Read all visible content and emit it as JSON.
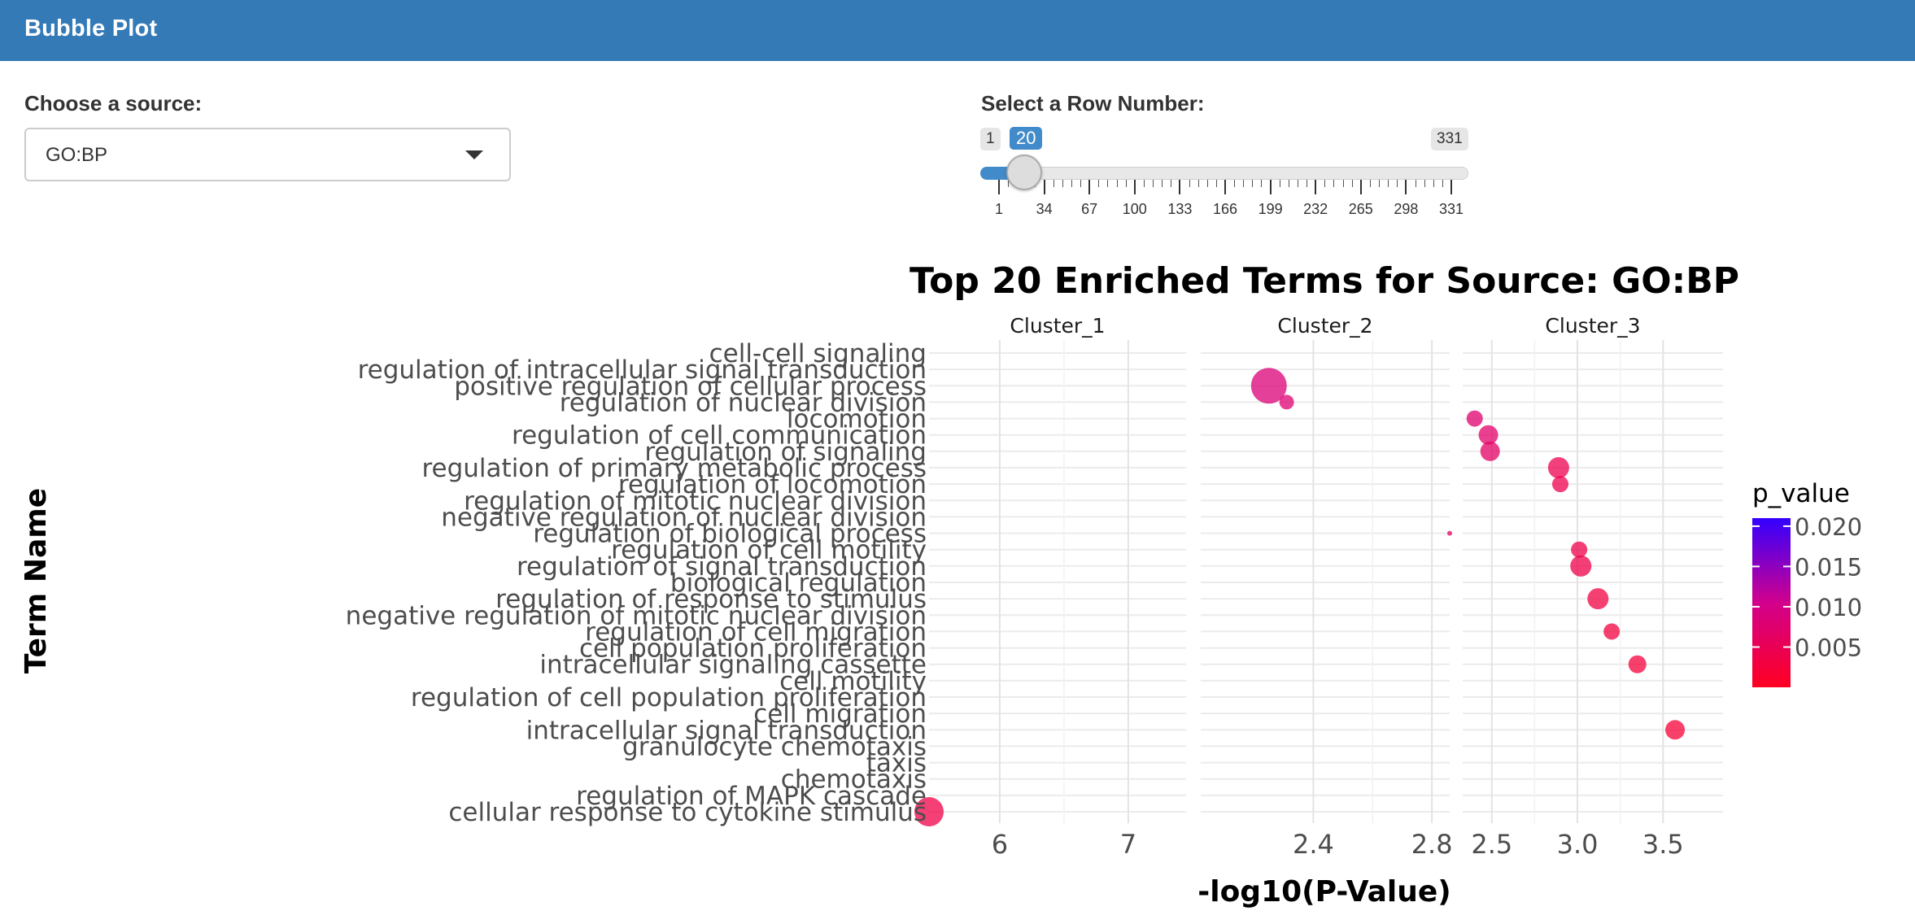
{
  "app": {
    "title": "Bubble Plot"
  },
  "source_select": {
    "label": "Choose a source:",
    "value": "GO:BP"
  },
  "row_slider": {
    "label": "Select a Row Number:",
    "min": 1,
    "max": 331,
    "value": 20,
    "min_label": "1",
    "max_label": "331",
    "value_label": "20",
    "ticks": [
      "1",
      "34",
      "67",
      "100",
      "133",
      "166",
      "199",
      "232",
      "265",
      "298",
      "331"
    ]
  },
  "chart_data": {
    "type": "scatter",
    "title": "Top 20 Enriched Terms for Source: GO:BP",
    "xlabel": "-log10(P-Value)",
    "ylabel": "Term Name",
    "grid": true,
    "legend": {
      "title": "p_value",
      "position": "right",
      "ticks": [
        "0.020",
        "0.015",
        "0.010",
        "0.005"
      ],
      "range": [
        0.0,
        0.021
      ],
      "color_low": "#ff0022",
      "color_high": "#3300ff"
    },
    "categories": [
      "cell-cell signaling",
      "regulation of intracellular signal transduction",
      "positive regulation of cellular process",
      "regulation of nuclear division",
      "locomotion",
      "regulation of cell communication",
      "regulation of signaling",
      "regulation of primary metabolic process",
      "regulation of locomotion",
      "regulation of mitotic nuclear division",
      "negative regulation of nuclear division",
      "regulation of biological process",
      "regulation of cell motility",
      "regulation of signal transduction",
      "biological regulation",
      "regulation of response to stimulus",
      "negative regulation of mitotic nuclear division",
      "regulation of cell migration",
      "cell population proliferation",
      "intracellular signaling cassette",
      "cell motility",
      "regulation of cell population proliferation",
      "cell migration",
      "intracellular signal transduction",
      "granulocyte chemotaxis",
      "taxis",
      "chemotaxis",
      "regulation of MAPK cascade",
      "cellular response to cytokine stimulus"
    ],
    "panels": [
      {
        "name": "Cluster_1",
        "xlim": [
          5.45,
          7.45
        ],
        "xticks": [
          6,
          7
        ],
        "points": [
          {
            "term": "cellular response to cytokine stimulus",
            "x": 5.45,
            "p_value": 0.0035,
            "size": 18
          }
        ]
      },
      {
        "name": "Cluster_2",
        "xlim": [
          2.02,
          2.86
        ],
        "xticks": [
          2.4,
          2.8
        ],
        "points": [
          {
            "term": "positive regulation of cellular process",
            "x": 2.25,
            "p_value": 0.0085,
            "size": 22
          },
          {
            "term": "regulation of nuclear division",
            "x": 2.31,
            "p_value": 0.008,
            "size": 9
          },
          {
            "term": "regulation of biological process",
            "x": 2.86,
            "p_value": 0.006,
            "size": 3
          }
        ]
      },
      {
        "name": "Cluster_3",
        "xlim": [
          2.33,
          3.85
        ],
        "xticks": [
          2.5,
          3.0,
          3.5
        ],
        "points": [
          {
            "term": "locomotion",
            "x": 2.4,
            "p_value": 0.0075,
            "size": 10
          },
          {
            "term": "regulation of cell communication",
            "x": 2.48,
            "p_value": 0.007,
            "size": 12
          },
          {
            "term": "regulation of signaling",
            "x": 2.49,
            "p_value": 0.0065,
            "size": 12
          },
          {
            "term": "regulation of primary metabolic process",
            "x": 2.89,
            "p_value": 0.0045,
            "size": 13
          },
          {
            "term": "regulation of locomotion",
            "x": 2.9,
            "p_value": 0.0043,
            "size": 10
          },
          {
            "term": "regulation of cell motility",
            "x": 3.01,
            "p_value": 0.004,
            "size": 10
          },
          {
            "term": "regulation of signal transduction",
            "x": 3.02,
            "p_value": 0.004,
            "size": 13
          },
          {
            "term": "regulation of response to stimulus",
            "x": 3.12,
            "p_value": 0.0033,
            "size": 13
          },
          {
            "term": "regulation of cell migration",
            "x": 3.2,
            "p_value": 0.003,
            "size": 10
          },
          {
            "term": "intracellular signaling cassette",
            "x": 3.35,
            "p_value": 0.0025,
            "size": 11
          },
          {
            "term": "intracellular signal transduction",
            "x": 3.57,
            "p_value": 0.002,
            "size": 12
          }
        ]
      }
    ]
  }
}
